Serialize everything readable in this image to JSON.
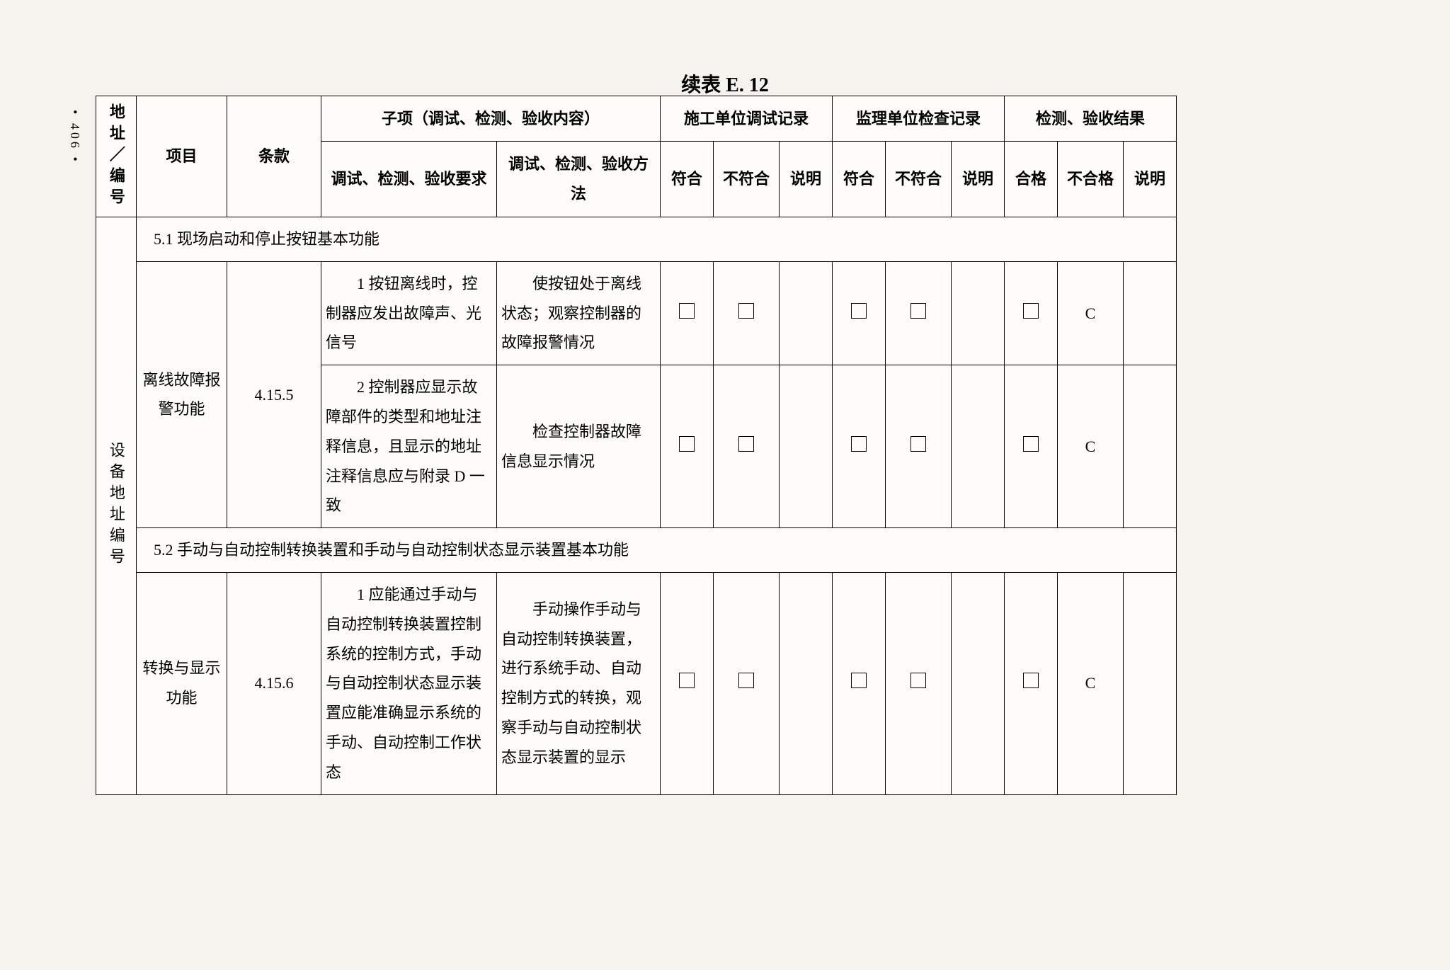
{
  "page_number": "406",
  "title": "续表 E. 12",
  "headers": {
    "addr": "地址／编号",
    "project": "项目",
    "clause": "条款",
    "subitem": "子项（调试、检测、验收内容）",
    "req": "调试、检测、验收要求",
    "method": "调试、检测、验收方法",
    "construction": "施工单位调试记录",
    "supervision": "监理单位检查记录",
    "result": "检测、验收结果",
    "conform": "符合",
    "nonconform": "不符合",
    "desc": "说明",
    "pass": "合格",
    "fail": "不合格"
  },
  "vlabel": "设备地址编号",
  "section1": "5.1 现场启动和停止按钮基本功能",
  "row1": {
    "project": "离线故障报警功能",
    "clause": "4.15.5",
    "req": "1 按钮离线时，控制器应发出故障声、光信号",
    "method": "使按钮处于离线状态；观察控制器的故障报警情况",
    "fail": "C"
  },
  "row2": {
    "req": "2 控制器应显示故障部件的类型和地址注释信息，且显示的地址注释信息应与附录 D 一致",
    "method": "检查控制器故障信息显示情况",
    "fail": "C"
  },
  "section2": "5.2 手动与自动控制转换装置和手动与自动控制状态显示装置基本功能",
  "row3": {
    "project": "转换与显示功能",
    "clause": "4.15.6",
    "req": "1 应能通过手动与自动控制转换装置控制系统的控制方式，手动与自动控制状态显示装置应能准确显示系统的手动、自动控制工作状态",
    "method": "手动操作手动与自动控制转换装置，进行系统手动、自动控制方式的转换，观察手动与自动控制状态显示装置的显示",
    "fail": "C"
  },
  "colors": {
    "background": "#f5f3ee",
    "table_bg": "#fdfcf8",
    "border": "#000000"
  }
}
